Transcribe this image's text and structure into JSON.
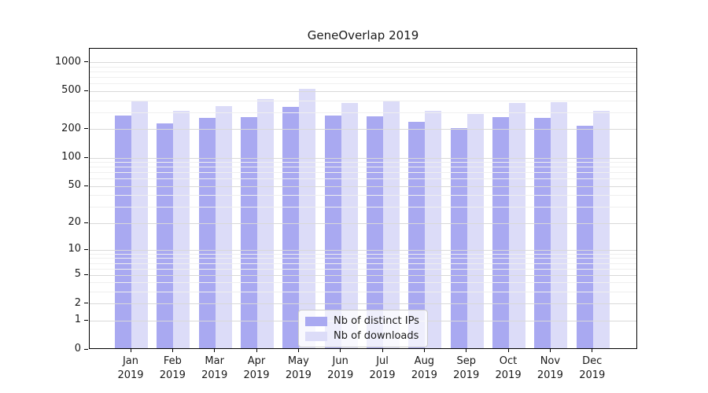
{
  "chart_data": {
    "type": "bar",
    "title": "GeneOverlap 2019",
    "categories": [
      "Jan 2019",
      "Feb 2019",
      "Mar 2019",
      "Apr 2019",
      "May 2019",
      "Jun 2019",
      "Jul 2019",
      "Aug 2019",
      "Sep 2019",
      "Oct 2019",
      "Nov 2019",
      "Dec 2019"
    ],
    "series": [
      {
        "name": "Nb of distinct IPs",
        "color": "#a9a9f1",
        "values": [
          268,
          224,
          256,
          261,
          334,
          268,
          264,
          233,
          200,
          259,
          254,
          211
        ]
      },
      {
        "name": "Nb of downloads",
        "color": "#dcdcf8",
        "values": [
          380,
          300,
          341,
          400,
          512,
          368,
          387,
          300,
          278,
          367,
          375,
          304
        ]
      }
    ],
    "xlabel": "",
    "ylabel": "",
    "yscale": "log1p",
    "ylim": [
      0,
      1400
    ],
    "yticks": [
      0,
      1,
      2,
      5,
      10,
      20,
      50,
      100,
      200,
      500,
      1000
    ],
    "yticks_minor": [
      3,
      4,
      6,
      7,
      8,
      9,
      30,
      40,
      60,
      70,
      80,
      90,
      300,
      400,
      600,
      700,
      800,
      900
    ],
    "grid": true,
    "legend_position": "lower center inside"
  },
  "legend": {
    "items": [
      {
        "label": "Nb of distinct IPs",
        "color": "#a9a9f1"
      },
      {
        "label": "Nb of downloads",
        "color": "#dcdcf8"
      }
    ]
  }
}
